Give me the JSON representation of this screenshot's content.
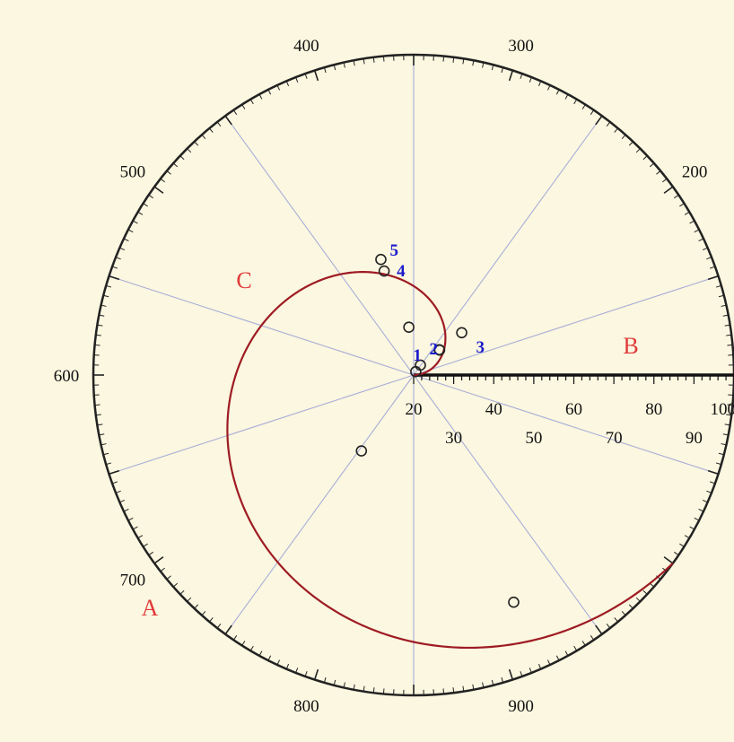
{
  "chart_data": {
    "type": "polar-scatter",
    "angle_axis": {
      "labels": [
        "200",
        "300",
        "400",
        "500",
        "600",
        "700",
        "800",
        "900"
      ],
      "label_color": "#111111",
      "spoke_color": "#a9aed8",
      "circle_color": "#222222"
    },
    "radial_axis": {
      "labels": [
        "20",
        "30",
        "40",
        "50",
        "60",
        "70",
        "80",
        "90",
        "100"
      ],
      "range": [
        20,
        100
      ]
    },
    "spiral": {
      "color": "#9e1b23"
    },
    "points": [
      {
        "label": "1",
        "r": 21,
        "theta": 262
      },
      {
        "label": "2",
        "r": 23,
        "theta": 255
      },
      {
        "label": "",
        "r": 29,
        "theta": 224
      },
      {
        "label": "",
        "r": 29,
        "theta": 222
      },
      {
        "label": "3",
        "r": 36,
        "theta": 215
      },
      {
        "label": "",
        "r": 32,
        "theta": 366
      },
      {
        "label": "4",
        "r": 47,
        "theta": 394
      },
      {
        "label": "5",
        "r": 50,
        "theta": 394
      },
      {
        "label": "",
        "r": 43,
        "theta": 754
      },
      {
        "label": "",
        "r": 82,
        "theta": 916
      }
    ],
    "point_label_color": "#1a1acc",
    "regions": [
      {
        "label": "A",
        "color": "#e03a3a"
      },
      {
        "label": "B",
        "color": "#e03a3a"
      },
      {
        "label": "C",
        "color": "#e03a3a"
      }
    ]
  }
}
